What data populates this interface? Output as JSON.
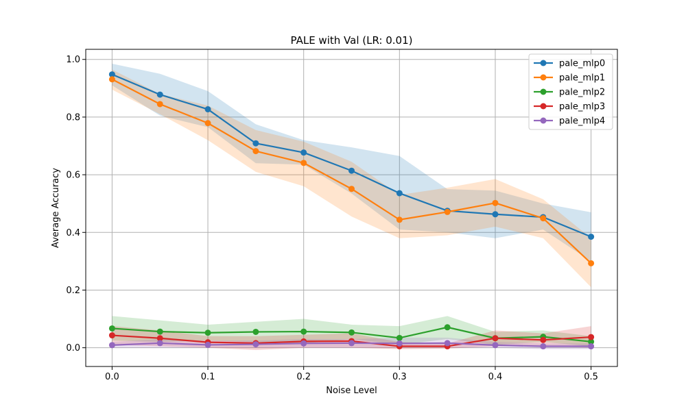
{
  "chart_data": {
    "type": "line",
    "title": "PALE with Val (LR: 0.01)",
    "xlabel": "Noise Level",
    "ylabel": "Average Accuracy",
    "x": [
      0.0,
      0.05,
      0.1,
      0.15,
      0.2,
      0.25,
      0.3,
      0.35,
      0.4,
      0.45,
      0.5
    ],
    "xlim": [
      -0.0275,
      0.5275
    ],
    "ylim": [
      -0.065,
      1.035
    ],
    "xticks": [
      0.0,
      0.1,
      0.2,
      0.3,
      0.4,
      0.5
    ],
    "xtick_labels": [
      "0.0",
      "0.1",
      "0.2",
      "0.3",
      "0.4",
      "0.5"
    ],
    "yticks": [
      0.0,
      0.2,
      0.4,
      0.6,
      0.8,
      1.0
    ],
    "ytick_labels": [
      "0.0",
      "0.2",
      "0.4",
      "0.6",
      "0.8",
      "1.0"
    ],
    "grid": true,
    "legend_position": "top-right",
    "series": [
      {
        "name": "pale_mlp0",
        "color": "#1f77b4",
        "values": [
          0.948,
          0.878,
          0.827,
          0.709,
          0.677,
          0.614,
          0.536,
          0.475,
          0.463,
          0.453,
          0.385
        ],
        "lower": [
          0.91,
          0.805,
          0.765,
          0.64,
          0.635,
          0.535,
          0.41,
          0.4,
          0.38,
          0.41,
          0.3
        ],
        "upper": [
          0.985,
          0.95,
          0.89,
          0.775,
          0.72,
          0.695,
          0.665,
          0.55,
          0.545,
          0.5,
          0.47
        ]
      },
      {
        "name": "pale_mlp1",
        "color": "#ff7f0e",
        "values": [
          0.931,
          0.845,
          0.779,
          0.682,
          0.641,
          0.551,
          0.444,
          0.471,
          0.502,
          0.449,
          0.293
        ],
        "lower": [
          0.895,
          0.81,
          0.72,
          0.61,
          0.56,
          0.455,
          0.38,
          0.39,
          0.42,
          0.38,
          0.21
        ],
        "upper": [
          0.965,
          0.88,
          0.84,
          0.755,
          0.715,
          0.645,
          0.53,
          0.555,
          0.585,
          0.515,
          0.38
        ]
      },
      {
        "name": "pale_mlp2",
        "color": "#2ca02c",
        "values": [
          0.067,
          0.056,
          0.052,
          0.055,
          0.056,
          0.053,
          0.034,
          0.071,
          0.033,
          0.038,
          0.021
        ],
        "lower": [
          0.025,
          0.02,
          0.025,
          0.02,
          0.015,
          0.03,
          0.01,
          0.03,
          0.01,
          0.02,
          0.005
        ],
        "upper": [
          0.11,
          0.095,
          0.08,
          0.09,
          0.1,
          0.08,
          0.075,
          0.11,
          0.055,
          0.06,
          0.04
        ]
      },
      {
        "name": "pale_mlp3",
        "color": "#d62728",
        "values": [
          0.043,
          0.033,
          0.019,
          0.016,
          0.022,
          0.023,
          0.005,
          0.005,
          0.033,
          0.027,
          0.037
        ],
        "lower": [
          0.01,
          0.005,
          0.0,
          -0.008,
          0.0,
          0.0,
          -0.005,
          -0.003,
          0.005,
          0.005,
          0.0
        ],
        "upper": [
          0.075,
          0.06,
          0.04,
          0.04,
          0.045,
          0.05,
          0.02,
          0.015,
          0.06,
          0.05,
          0.075
        ]
      },
      {
        "name": "pale_mlp4",
        "color": "#9467bd",
        "values": [
          0.009,
          0.016,
          0.01,
          0.012,
          0.015,
          0.016,
          0.015,
          0.016,
          0.009,
          0.005,
          0.005
        ],
        "lower": [
          0.0,
          0.0,
          0.0,
          0.0,
          0.0,
          0.0,
          0.0,
          0.0,
          0.0,
          -0.005,
          -0.005
        ],
        "upper": [
          0.02,
          0.03,
          0.025,
          0.025,
          0.03,
          0.03,
          0.035,
          0.035,
          0.02,
          0.015,
          0.015
        ]
      }
    ]
  }
}
